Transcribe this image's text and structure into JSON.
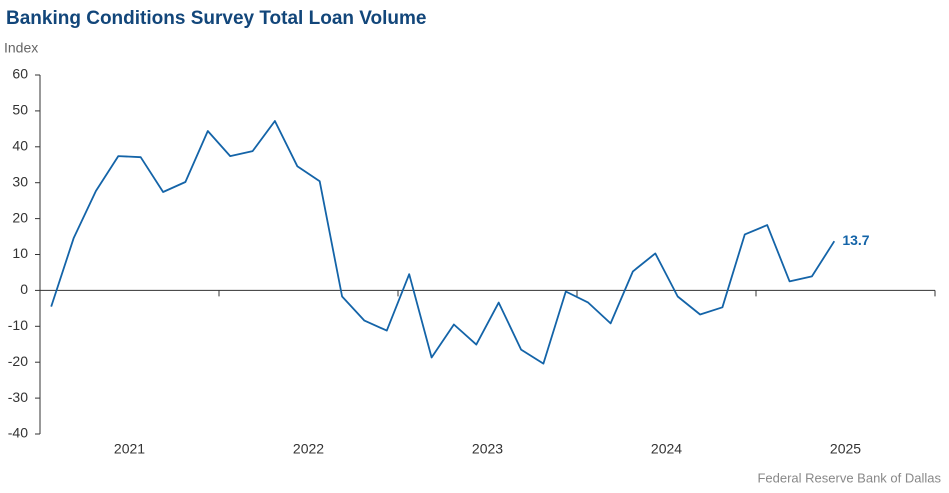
{
  "chart_data": {
    "type": "line",
    "title": "Banking Conditions Survey Total Loan Volume",
    "y_axis_label": "Index",
    "source": "Federal Reserve Bank of Dallas",
    "x_labels": [
      "2021",
      "2022",
      "2023",
      "2024",
      "2025"
    ],
    "categories": [
      null,
      null,
      null,
      null,
      null,
      null,
      null,
      null,
      null,
      null,
      null,
      null,
      null,
      null,
      null,
      null,
      null,
      null,
      null,
      null,
      null,
      null,
      null,
      null,
      null,
      null,
      null,
      null,
      null,
      null,
      null,
      null,
      null,
      null,
      null,
      null
    ],
    "series": [
      {
        "color": "#1464a8",
        "values": [
          -4.5,
          14.5,
          27.7,
          37.4,
          37.1,
          27.4,
          30.2,
          44.4,
          37.4,
          38.8,
          47.2,
          34.6,
          30.4,
          -1.7,
          -8.4,
          -11.2,
          4.5,
          -18.7,
          -9.5,
          -15.1,
          -3.4,
          -16.5,
          -20.4,
          -0.3,
          -3.4,
          -9.2,
          5.3,
          10.3,
          -1.7,
          -6.7,
          -4.7,
          15.6,
          18.2,
          2.5,
          3.9,
          13.7
        ]
      }
    ],
    "ylim": [
      -40,
      60
    ],
    "yticks": [
      -40,
      -30,
      -20,
      -10,
      0,
      10,
      20,
      30,
      40,
      50,
      60
    ]
  }
}
